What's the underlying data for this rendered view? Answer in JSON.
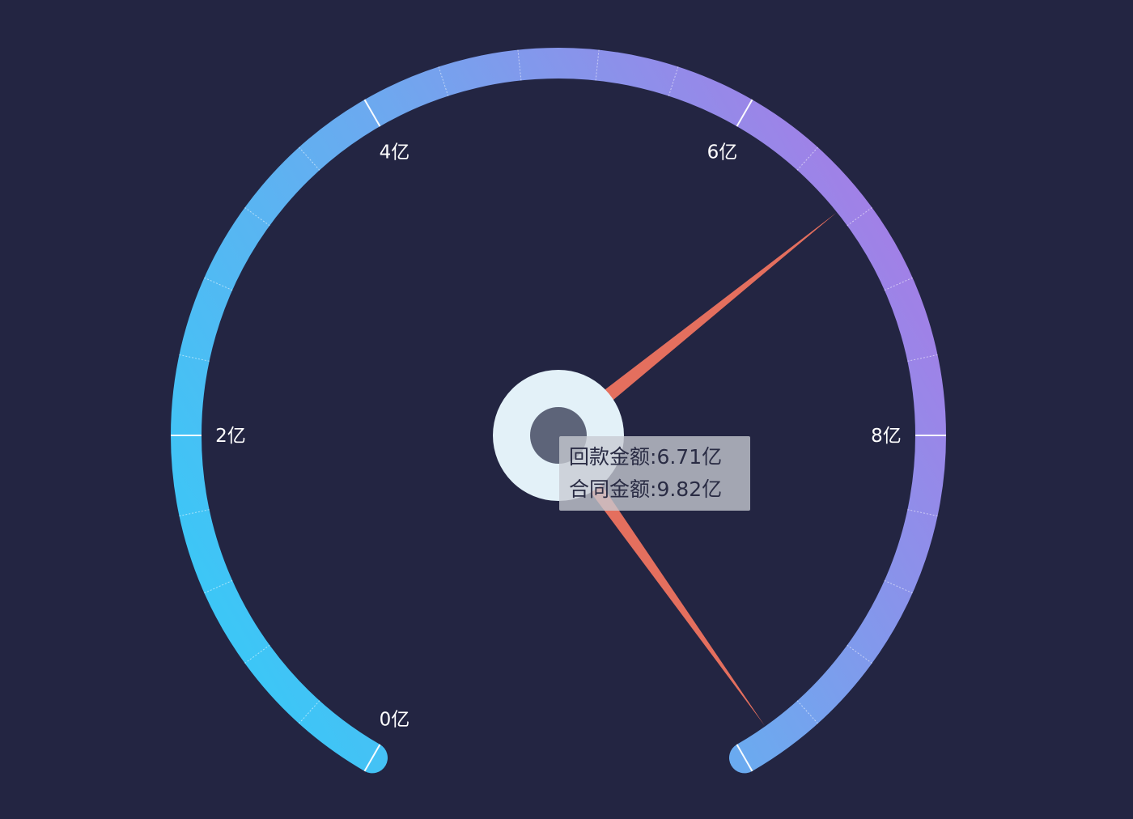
{
  "chart_data": {
    "type": "gauge",
    "min": 0,
    "max": 10,
    "unit": "亿",
    "tick_labels": [
      "0亿",
      "2亿",
      "4亿",
      "6亿",
      "8亿"
    ],
    "major_ticks": [
      0,
      2,
      4,
      6,
      8
    ],
    "minor_ticks_per_major": 5,
    "gradient_colors": [
      "#3dc6f6",
      "#6ea8ef",
      "#a57de6"
    ],
    "pointer_color": "#e46f5e",
    "series": [
      {
        "name": "回款金额",
        "value": 6.71
      },
      {
        "name": "合同金额",
        "value": 9.82
      }
    ]
  },
  "tooltip": {
    "rows": [
      {
        "label": "回款金额",
        "value": "6.71亿"
      },
      {
        "label": "合同金额",
        "value": "9.82亿"
      }
    ]
  }
}
